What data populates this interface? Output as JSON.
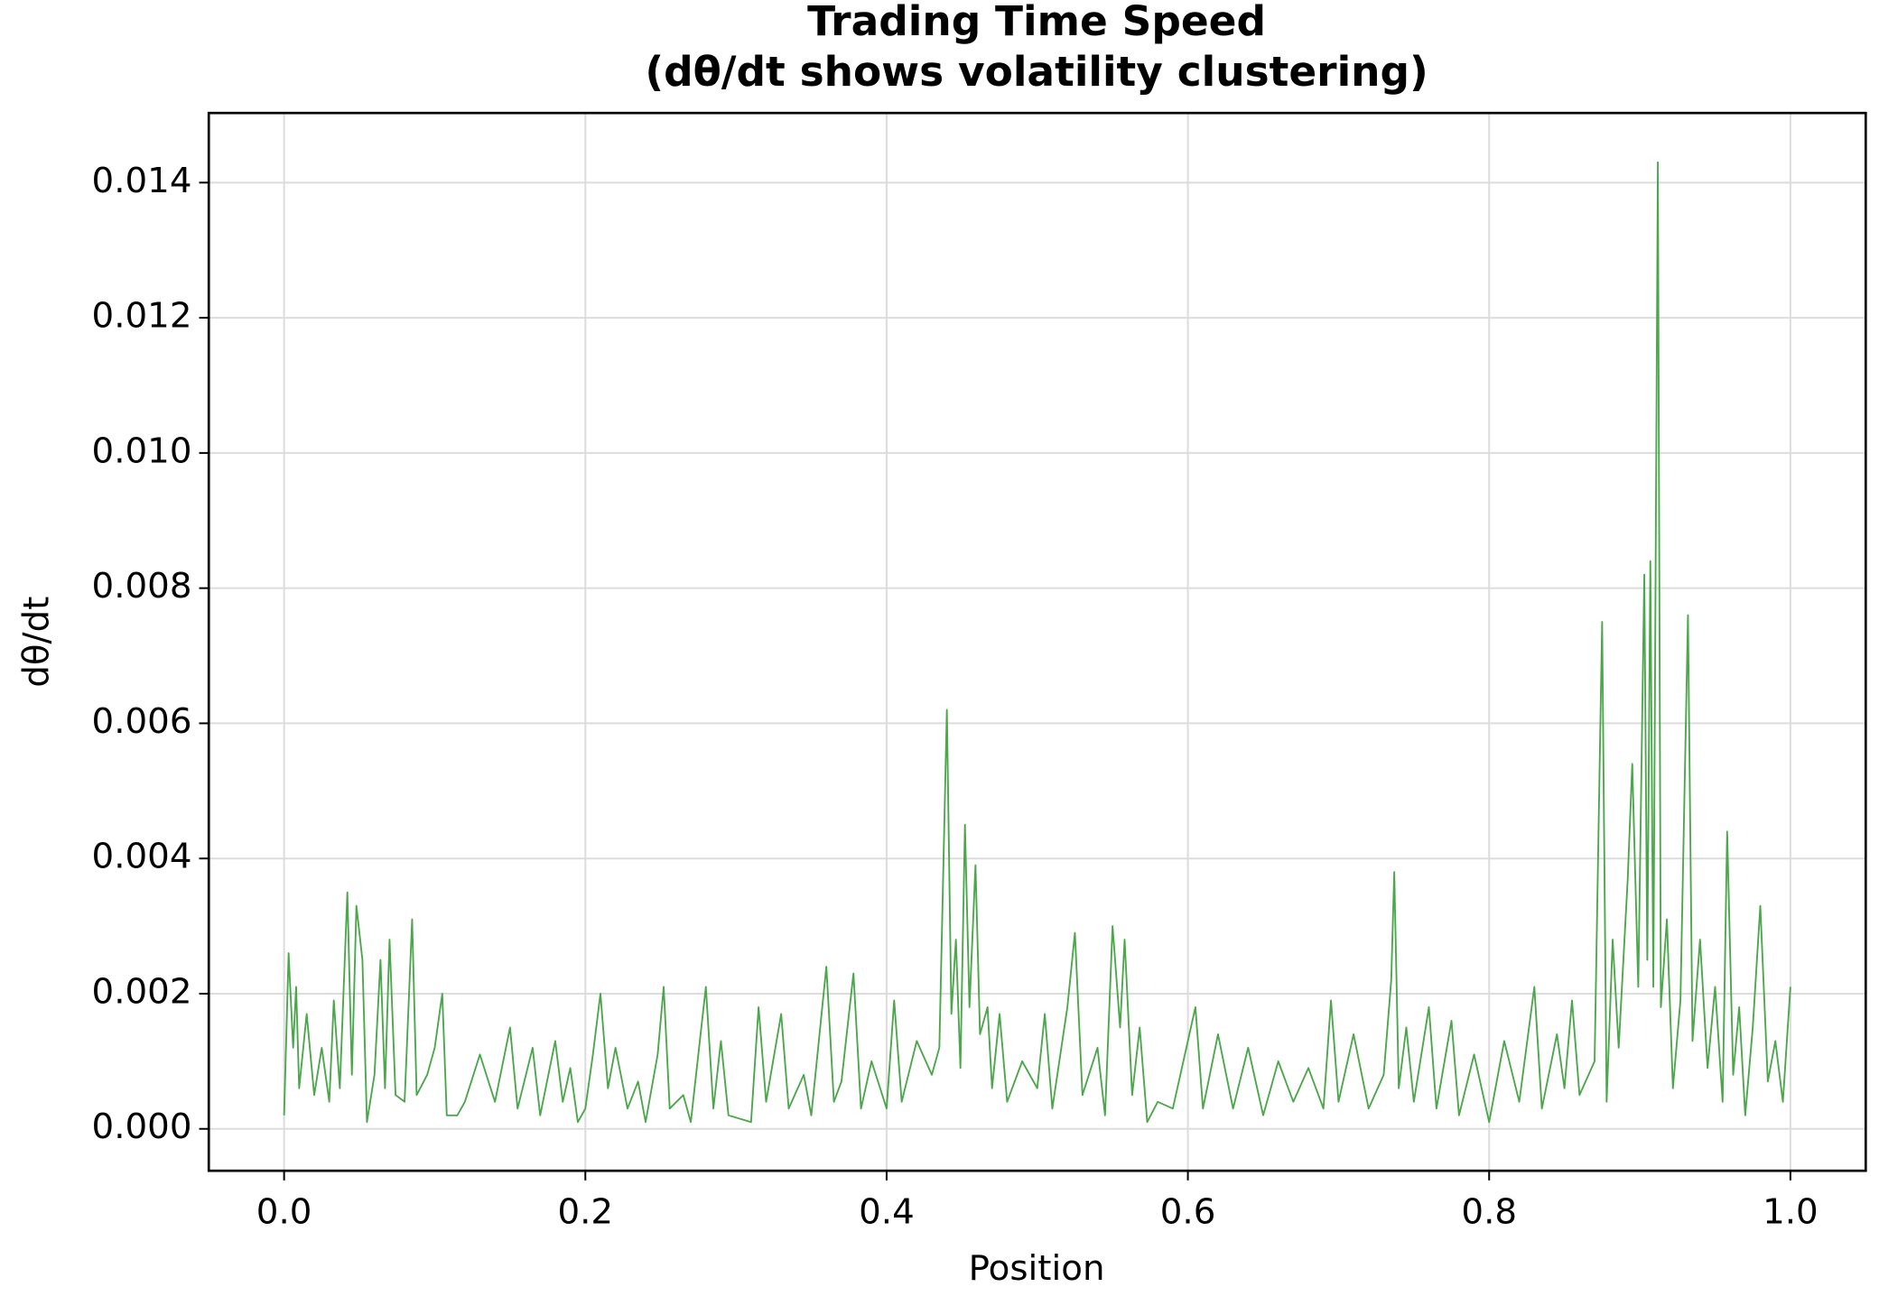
{
  "chart_data": {
    "type": "line",
    "title": "Trading Time Speed",
    "subtitle": "(dθ/dt shows volatility clustering)",
    "x_label": "Position",
    "y_label": "dθ/dt",
    "grid": true,
    "xlim": [
      -0.05,
      1.05
    ],
    "ylim": [
      -0.00062,
      0.01503
    ],
    "xticks": [
      {
        "value": 0,
        "label": "0.0"
      },
      0.2,
      0.4,
      0.6,
      0.8,
      {
        "value": 1,
        "label": "1.0"
      }
    ],
    "yticks": [
      {
        "value": 0,
        "label": "0.000"
      },
      {
        "value": 0.002,
        "label": "0.002"
      },
      {
        "value": 0.004,
        "label": "0.004"
      },
      {
        "value": 0.006,
        "label": "0.006"
      },
      {
        "value": 0.008,
        "label": "0.008"
      },
      {
        "value": 0.01,
        "label": "0.010"
      },
      {
        "value": 0.012,
        "label": "0.012"
      },
      {
        "value": 0.014,
        "label": "0.014"
      }
    ],
    "x": [
      0.0,
      0.003,
      0.006,
      0.008,
      0.01,
      0.015,
      0.02,
      0.025,
      0.03,
      0.033,
      0.037,
      0.042,
      0.045,
      0.048,
      0.052,
      0.055,
      0.06,
      0.064,
      0.067,
      0.07,
      0.074,
      0.08,
      0.085,
      0.088,
      0.095,
      0.1,
      0.105,
      0.108,
      0.115,
      0.12,
      0.13,
      0.14,
      0.15,
      0.155,
      0.165,
      0.17,
      0.18,
      0.185,
      0.19,
      0.195,
      0.2,
      0.205,
      0.21,
      0.215,
      0.22,
      0.228,
      0.235,
      0.24,
      0.248,
      0.252,
      0.256,
      0.265,
      0.27,
      0.28,
      0.285,
      0.29,
      0.295,
      0.31,
      0.315,
      0.32,
      0.33,
      0.335,
      0.345,
      0.35,
      0.36,
      0.365,
      0.37,
      0.378,
      0.383,
      0.39,
      0.4,
      0.405,
      0.41,
      0.42,
      0.43,
      0.435,
      0.44,
      0.443,
      0.446,
      0.449,
      0.452,
      0.455,
      0.459,
      0.462,
      0.467,
      0.47,
      0.475,
      0.48,
      0.49,
      0.5,
      0.505,
      0.51,
      0.52,
      0.525,
      0.53,
      0.54,
      0.545,
      0.55,
      0.555,
      0.558,
      0.563,
      0.568,
      0.573,
      0.58,
      0.59,
      0.605,
      0.61,
      0.62,
      0.63,
      0.64,
      0.65,
      0.66,
      0.67,
      0.68,
      0.69,
      0.695,
      0.7,
      0.71,
      0.72,
      0.73,
      0.735,
      0.737,
      0.74,
      0.745,
      0.75,
      0.76,
      0.765,
      0.775,
      0.78,
      0.79,
      0.8,
      0.81,
      0.82,
      0.83,
      0.835,
      0.845,
      0.85,
      0.855,
      0.86,
      0.87,
      0.875,
      0.878,
      0.882,
      0.886,
      0.892,
      0.895,
      0.899,
      0.903,
      0.905,
      0.907,
      0.909,
      0.912,
      0.914,
      0.918,
      0.922,
      0.927,
      0.932,
      0.935,
      0.94,
      0.945,
      0.95,
      0.955,
      0.958,
      0.962,
      0.966,
      0.97,
      0.975,
      0.98,
      0.985,
      0.99,
      0.995,
      1.0
    ],
    "series": [
      {
        "color": "#4ca64c",
        "values": [
          0.0002,
          0.0026,
          0.0012,
          0.0021,
          0.0006,
          0.0017,
          0.0005,
          0.0012,
          0.0004,
          0.0019,
          0.0006,
          0.0035,
          0.0008,
          0.0033,
          0.0025,
          0.0001,
          0.0008,
          0.0025,
          0.0006,
          0.0028,
          0.0005,
          0.0004,
          0.0031,
          0.0005,
          0.0008,
          0.0012,
          0.002,
          0.0002,
          0.0002,
          0.0004,
          0.0011,
          0.0004,
          0.0015,
          0.0003,
          0.0012,
          0.0002,
          0.0013,
          0.0004,
          0.0009,
          0.0001,
          0.0003,
          0.0011,
          0.002,
          0.0006,
          0.0012,
          0.0003,
          0.0007,
          0.0001,
          0.0011,
          0.0021,
          0.0003,
          0.0005,
          0.0001,
          0.0021,
          0.0003,
          0.0013,
          0.0002,
          0.0001,
          0.0018,
          0.0004,
          0.0017,
          0.0003,
          0.0008,
          0.0002,
          0.0024,
          0.0004,
          0.0007,
          0.0023,
          0.0003,
          0.001,
          0.0003,
          0.0019,
          0.0004,
          0.0013,
          0.0008,
          0.0012,
          0.0062,
          0.0017,
          0.0028,
          0.0009,
          0.0045,
          0.0018,
          0.0039,
          0.0014,
          0.0018,
          0.0006,
          0.0017,
          0.0004,
          0.001,
          0.0006,
          0.0017,
          0.0003,
          0.0018,
          0.0029,
          0.0005,
          0.0012,
          0.0002,
          0.003,
          0.0015,
          0.0028,
          0.0005,
          0.0015,
          0.0001,
          0.0004,
          0.0003,
          0.0018,
          0.0003,
          0.0014,
          0.0003,
          0.0012,
          0.0002,
          0.001,
          0.0004,
          0.0009,
          0.0003,
          0.0019,
          0.0004,
          0.0014,
          0.0003,
          0.0008,
          0.0022,
          0.0038,
          0.0006,
          0.0015,
          0.0004,
          0.0018,
          0.0003,
          0.0016,
          0.0002,
          0.0011,
          0.0001,
          0.0013,
          0.0004,
          0.0021,
          0.0003,
          0.0014,
          0.0006,
          0.0019,
          0.0005,
          0.001,
          0.0075,
          0.0004,
          0.0028,
          0.0012,
          0.0037,
          0.0054,
          0.0021,
          0.0082,
          0.0025,
          0.0084,
          0.0021,
          0.0143,
          0.0018,
          0.0031,
          0.0006,
          0.0019,
          0.0076,
          0.0013,
          0.0028,
          0.0009,
          0.0021,
          0.0004,
          0.0044,
          0.0008,
          0.0018,
          0.0002,
          0.0015,
          0.0033,
          0.0007,
          0.0013,
          0.0004,
          0.0021
        ]
      }
    ]
  }
}
